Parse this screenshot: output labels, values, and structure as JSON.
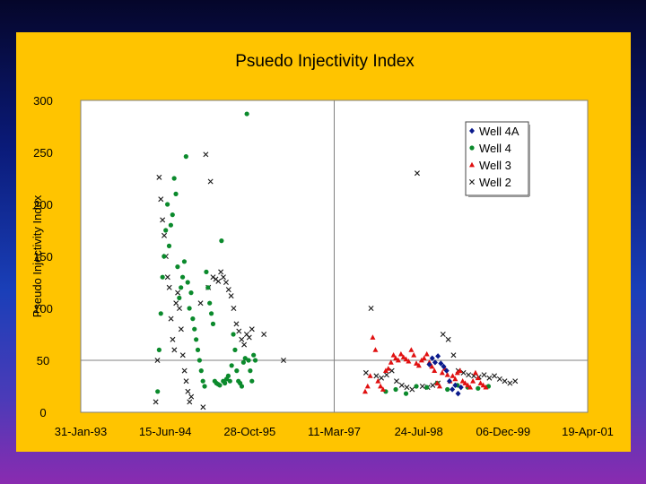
{
  "chart_data": {
    "type": "scatter",
    "title": "Psuedo Injectivity Index",
    "xlabel": "",
    "ylabel": "Pseudo Injectivity Index",
    "x_ticks": [
      "31-Jan-93",
      "15-Jun-94",
      "28-Oct-95",
      "11-Mar-97",
      "24-Jul-98",
      "06-Dec-99",
      "19-Apr-01"
    ],
    "y_ticks": [
      "0",
      "50",
      "100",
      "150",
      "200",
      "250",
      "300"
    ],
    "xlim": [
      "1993-01-31",
      "2001-04-19"
    ],
    "ylim": [
      0,
      300
    ],
    "gridlines": {
      "x": [
        "1997-03-11"
      ],
      "y": [
        50
      ]
    },
    "legend_position": "top-right",
    "series": [
      {
        "name": "Well 4A",
        "marker": "diamond",
        "color": "#0a1a8c",
        "points": [
          [
            "1998-09-25",
            46
          ],
          [
            "1998-10-12",
            52
          ],
          [
            "1998-10-29",
            48
          ],
          [
            "1998-11-15",
            54
          ],
          [
            "1998-12-02",
            47
          ],
          [
            "1998-12-19",
            44
          ],
          [
            "1999-01-05",
            40
          ],
          [
            "1999-01-22",
            30
          ],
          [
            "1999-02-08",
            22
          ],
          [
            "1999-02-25",
            26
          ],
          [
            "1999-03-14",
            18
          ],
          [
            "1999-03-31",
            24
          ]
        ]
      },
      {
        "name": "Well 4",
        "marker": "circle",
        "color": "#0b8a2c",
        "points": [
          [
            "1994-05-01",
            20
          ],
          [
            "1994-05-10",
            60
          ],
          [
            "1994-05-20",
            95
          ],
          [
            "1994-05-30",
            130
          ],
          [
            "1994-06-08",
            150
          ],
          [
            "1994-06-18",
            175
          ],
          [
            "1994-06-28",
            200
          ],
          [
            "1994-07-08",
            160
          ],
          [
            "1994-07-18",
            180
          ],
          [
            "1994-07-28",
            190
          ],
          [
            "1994-08-07",
            225
          ],
          [
            "1994-08-17",
            210
          ],
          [
            "1994-08-27",
            140
          ],
          [
            "1994-09-06",
            110
          ],
          [
            "1994-09-16",
            120
          ],
          [
            "1994-09-26",
            130
          ],
          [
            "1994-10-06",
            145
          ],
          [
            "1994-10-16",
            246
          ],
          [
            "1994-10-26",
            125
          ],
          [
            "1994-11-05",
            100
          ],
          [
            "1994-11-15",
            115
          ],
          [
            "1994-11-25",
            90
          ],
          [
            "1994-12-05",
            80
          ],
          [
            "1994-12-15",
            70
          ],
          [
            "1994-12-25",
            60
          ],
          [
            "1995-01-04",
            50
          ],
          [
            "1995-01-14",
            40
          ],
          [
            "1995-01-24",
            30
          ],
          [
            "1995-02-03",
            25
          ],
          [
            "1995-02-13",
            135
          ],
          [
            "1995-02-23",
            120
          ],
          [
            "1995-03-05",
            105
          ],
          [
            "1995-03-15",
            95
          ],
          [
            "1995-03-25",
            85
          ],
          [
            "1995-04-04",
            30
          ],
          [
            "1995-04-14",
            28
          ],
          [
            "1995-04-24",
            27
          ],
          [
            "1995-05-04",
            26
          ],
          [
            "1995-05-14",
            165
          ],
          [
            "1995-05-24",
            30
          ],
          [
            "1995-06-03",
            28
          ],
          [
            "1995-06-13",
            32
          ],
          [
            "1995-06-23",
            35
          ],
          [
            "1995-07-03",
            30
          ],
          [
            "1995-07-13",
            45
          ],
          [
            "1995-07-23",
            75
          ],
          [
            "1995-08-02",
            60
          ],
          [
            "1995-08-12",
            40
          ],
          [
            "1995-08-22",
            30
          ],
          [
            "1995-09-01",
            28
          ],
          [
            "1995-09-11",
            25
          ],
          [
            "1995-09-21",
            48
          ],
          [
            "1995-10-01",
            52
          ],
          [
            "1995-10-11",
            287
          ],
          [
            "1995-10-21",
            50
          ],
          [
            "1995-10-31",
            40
          ],
          [
            "1995-11-10",
            30
          ],
          [
            "1995-11-20",
            55
          ],
          [
            "1995-11-30",
            50
          ],
          [
            "1998-01-10",
            20
          ],
          [
            "1998-03-10",
            22
          ],
          [
            "1998-05-10",
            18
          ],
          [
            "1998-07-10",
            25
          ],
          [
            "1998-09-10",
            24
          ],
          [
            "1998-11-10",
            28
          ],
          [
            "1999-01-10",
            22
          ],
          [
            "1999-03-10",
            26
          ],
          [
            "1999-05-10",
            24
          ],
          [
            "1999-07-10",
            23
          ],
          [
            "1999-09-10",
            25
          ]
        ]
      },
      {
        "name": "Well 3",
        "marker": "triangle",
        "color": "#e01010",
        "points": [
          [
            "1997-09-10",
            20
          ],
          [
            "1997-09-25",
            25
          ],
          [
            "1997-10-10",
            35
          ],
          [
            "1997-10-25",
            72
          ],
          [
            "1997-11-10",
            60
          ],
          [
            "1997-11-25",
            30
          ],
          [
            "1997-12-10",
            25
          ],
          [
            "1997-12-25",
            22
          ],
          [
            "1998-01-10",
            40
          ],
          [
            "1998-01-25",
            42
          ],
          [
            "1998-02-10",
            48
          ],
          [
            "1998-02-25",
            55
          ],
          [
            "1998-03-10",
            52
          ],
          [
            "1998-03-25",
            50
          ],
          [
            "1998-04-10",
            56
          ],
          [
            "1998-04-25",
            53
          ],
          [
            "1998-05-10",
            51
          ],
          [
            "1998-05-25",
            49
          ],
          [
            "1998-06-10",
            60
          ],
          [
            "1998-06-25",
            55
          ],
          [
            "1998-07-10",
            47
          ],
          [
            "1998-07-25",
            45
          ],
          [
            "1998-08-10",
            50
          ],
          [
            "1998-08-25",
            52
          ],
          [
            "1998-09-10",
            56
          ],
          [
            "1998-09-25",
            48
          ],
          [
            "1998-10-10",
            44
          ],
          [
            "1998-10-25",
            40
          ],
          [
            "1998-11-10",
            28
          ],
          [
            "1998-11-25",
            25
          ],
          [
            "1998-12-10",
            38
          ],
          [
            "1998-12-25",
            42
          ],
          [
            "1999-01-10",
            36
          ],
          [
            "1999-01-25",
            30
          ],
          [
            "1999-02-10",
            35
          ],
          [
            "1999-02-25",
            32
          ],
          [
            "1999-03-10",
            38
          ],
          [
            "1999-03-25",
            40
          ],
          [
            "1999-04-10",
            30
          ],
          [
            "1999-04-25",
            28
          ],
          [
            "1999-05-10",
            26
          ],
          [
            "1999-05-25",
            24
          ],
          [
            "1999-06-10",
            30
          ],
          [
            "1999-06-25",
            38
          ],
          [
            "1999-07-10",
            33
          ],
          [
            "1999-07-25",
            28
          ],
          [
            "1999-08-10",
            26
          ],
          [
            "1999-08-25",
            24
          ]
        ]
      },
      {
        "name": "Well 2",
        "marker": "x",
        "color": "#1a1a1a",
        "points": [
          [
            "1994-04-20",
            10
          ],
          [
            "1994-04-30",
            50
          ],
          [
            "1994-05-10",
            226
          ],
          [
            "1994-05-20",
            205
          ],
          [
            "1994-05-30",
            185
          ],
          [
            "1994-06-09",
            170
          ],
          [
            "1994-06-19",
            150
          ],
          [
            "1994-06-29",
            130
          ],
          [
            "1994-07-09",
            120
          ],
          [
            "1994-07-19",
            90
          ],
          [
            "1994-07-29",
            70
          ],
          [
            "1994-08-08",
            60
          ],
          [
            "1994-08-18",
            105
          ],
          [
            "1994-08-28",
            115
          ],
          [
            "1994-09-07",
            100
          ],
          [
            "1994-09-17",
            80
          ],
          [
            "1994-09-27",
            55
          ],
          [
            "1994-10-07",
            40
          ],
          [
            "1994-10-17",
            30
          ],
          [
            "1994-10-27",
            20
          ],
          [
            "1994-11-06",
            10
          ],
          [
            "1994-11-16",
            15
          ],
          [
            "1995-01-10",
            105
          ],
          [
            "1995-01-25",
            5
          ],
          [
            "1995-02-10",
            248
          ],
          [
            "1995-02-25",
            120
          ],
          [
            "1995-03-10",
            222
          ],
          [
            "1995-03-25",
            130
          ],
          [
            "1995-04-10",
            128
          ],
          [
            "1995-04-25",
            126
          ],
          [
            "1995-05-10",
            135
          ],
          [
            "1995-05-25",
            130
          ],
          [
            "1995-06-10",
            125
          ],
          [
            "1995-06-25",
            118
          ],
          [
            "1995-07-10",
            112
          ],
          [
            "1995-07-25",
            100
          ],
          [
            "1995-08-10",
            85
          ],
          [
            "1995-08-25",
            78
          ],
          [
            "1995-09-10",
            70
          ],
          [
            "1995-09-25",
            65
          ],
          [
            "1995-10-10",
            75
          ],
          [
            "1995-10-25",
            72
          ],
          [
            "1995-11-10",
            80
          ],
          [
            "1996-01-20",
            75
          ],
          [
            "1996-05-15",
            50
          ],
          [
            "1997-09-15",
            38
          ],
          [
            "1997-10-15",
            100
          ],
          [
            "1997-11-15",
            35
          ],
          [
            "1997-12-15",
            33
          ],
          [
            "1998-01-15",
            36
          ],
          [
            "1998-02-15",
            40
          ],
          [
            "1998-03-15",
            30
          ],
          [
            "1998-04-15",
            26
          ],
          [
            "1998-05-15",
            24
          ],
          [
            "1998-06-15",
            22
          ],
          [
            "1998-07-15",
            230
          ],
          [
            "1998-08-15",
            25
          ],
          [
            "1998-09-15",
            24
          ],
          [
            "1998-10-15",
            26
          ],
          [
            "1998-11-15",
            28
          ],
          [
            "1998-12-15",
            75
          ],
          [
            "1999-01-15",
            70
          ],
          [
            "1999-02-15",
            55
          ],
          [
            "1999-03-15",
            40
          ],
          [
            "1999-04-15",
            38
          ],
          [
            "1999-05-15",
            36
          ],
          [
            "1999-06-15",
            35
          ],
          [
            "1999-07-15",
            34
          ],
          [
            "1999-08-15",
            36
          ],
          [
            "1999-09-15",
            33
          ],
          [
            "1999-10-15",
            35
          ],
          [
            "1999-11-15",
            32
          ],
          [
            "1999-12-15",
            30
          ],
          [
            "2000-01-15",
            28
          ],
          [
            "2000-02-15",
            30
          ]
        ]
      }
    ]
  }
}
